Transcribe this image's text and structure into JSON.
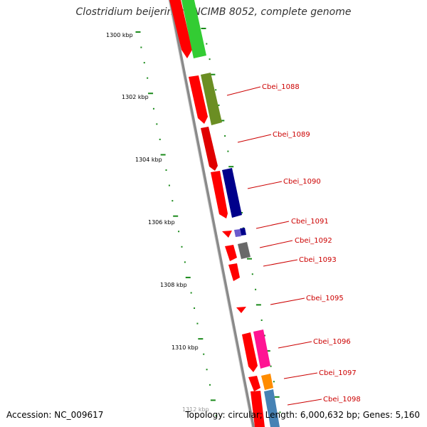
{
  "title": "Clostridium beijerinckii NCIMB 8052, complete genome",
  "footer": {
    "accession": "Accession: NC_009617",
    "summary": "Topology: circular; Length: 6,000,632 bp; Genes: 5,160"
  },
  "scale_labels": [
    "1300 kbp",
    "1302 kbp",
    "1304 kbp",
    "1306 kbp",
    "1308 kbp",
    "1310 kbp"
  ],
  "colors": {
    "forward_strand": "#ff0000",
    "backbone": "#888888",
    "tick": "#1a8a1a",
    "label": "#cc0000"
  },
  "genes": [
    {
      "label": "",
      "color": "#33cc33"
    },
    {
      "label": "Cbei_1088",
      "color": "#6b8e23"
    },
    {
      "label": "Cbei_1089",
      "color": ""
    },
    {
      "label": "Cbei_1090",
      "color": "#00008b"
    },
    {
      "label": "Cbei_1091",
      "color": "#6a5acd"
    },
    {
      "label": "Cbei_1092",
      "color": "#696969"
    },
    {
      "label": "Cbei_1093",
      "color": ""
    },
    {
      "label": "Cbei_1095",
      "color": ""
    },
    {
      "label": "Cbei_1096",
      "color": "#ff1493"
    },
    {
      "label": "Cbei_1097",
      "color": "#ff8c00"
    },
    {
      "label": "Cbei_1098",
      "color": "#4682b4"
    }
  ]
}
